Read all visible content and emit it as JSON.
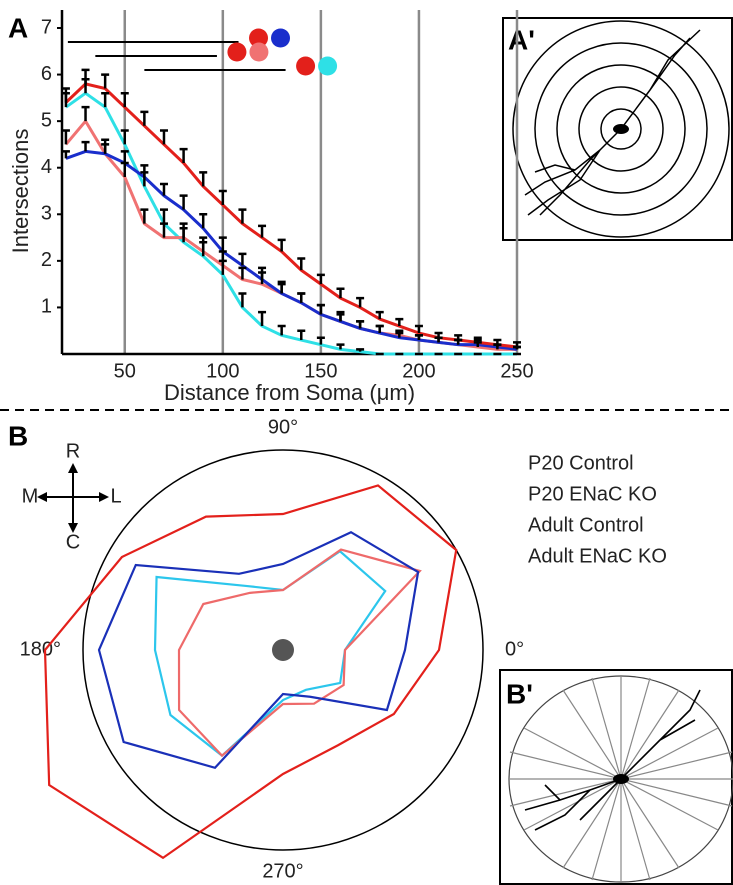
{
  "chart_data": [
    {
      "type": "line",
      "panel_label": "A",
      "inset_label": "A'",
      "x_label": "Distance from Soma (μm)",
      "y_label": "Intersections",
      "x": [
        20,
        30,
        40,
        50,
        60,
        70,
        80,
        90,
        100,
        110,
        120,
        130,
        140,
        150,
        160,
        170,
        180,
        190,
        200,
        210,
        220,
        230,
        240,
        250
      ],
      "series": [
        {
          "color": "#2ee0e6",
          "values": [
            5.3,
            5.6,
            5.3,
            4.5,
            3.6,
            2.8,
            2.4,
            2.1,
            1.7,
            1.0,
            0.6,
            0.4,
            0.3,
            0.2,
            0.1,
            0.05,
            0,
            0,
            0,
            0,
            0,
            0,
            0,
            0
          ],
          "errors": [
            0.3,
            0.3,
            0.3,
            0.3,
            0.3,
            0.3,
            0.3,
            0.3,
            0.3,
            0.3,
            0.3,
            0.2,
            0.2,
            0.15,
            0.1,
            0.05,
            0,
            0,
            0,
            0,
            0,
            0,
            0,
            0
          ]
        },
        {
          "color": "#f07272",
          "values": [
            4.5,
            5.0,
            4.3,
            3.8,
            2.8,
            2.5,
            2.5,
            2.2,
            1.9,
            1.6,
            1.5,
            1.3,
            1.1,
            0.85,
            0.7,
            0.55,
            0.45,
            0.4,
            0.3,
            0.25,
            0.2,
            0.15,
            0.1,
            0.1
          ],
          "errors": [
            0.3,
            0.3,
            0.3,
            0.3,
            0.3,
            0.3,
            0.3,
            0.3,
            0.3,
            0.25,
            0.25,
            0.25,
            0.2,
            0.2,
            0.2,
            0.15,
            0.15,
            0.1,
            0.1,
            0.1,
            0.1,
            0.1,
            0.1,
            0.05
          ]
        },
        {
          "color": "#1a2ecc",
          "values": [
            4.2,
            4.35,
            4.3,
            4.1,
            3.8,
            3.4,
            3.1,
            2.7,
            2.2,
            1.9,
            1.6,
            1.3,
            1.1,
            0.85,
            0.7,
            0.55,
            0.45,
            0.35,
            0.3,
            0.25,
            0.2,
            0.2,
            0.15,
            0.1
          ],
          "errors": [
            0.15,
            0.2,
            0.2,
            0.25,
            0.25,
            0.25,
            0.3,
            0.3,
            0.3,
            0.25,
            0.25,
            0.2,
            0.2,
            0.2,
            0.15,
            0.15,
            0.15,
            0.1,
            0.1,
            0.1,
            0.1,
            0.1,
            0.05,
            0.05
          ]
        },
        {
          "color": "#e3201b",
          "values": [
            5.4,
            5.8,
            5.7,
            5.3,
            4.9,
            4.5,
            4.1,
            3.6,
            3.2,
            2.8,
            2.5,
            2.2,
            1.8,
            1.5,
            1.2,
            1.0,
            0.75,
            0.6,
            0.45,
            0.35,
            0.3,
            0.25,
            0.2,
            0.15
          ],
          "errors": [
            0.3,
            0.3,
            0.3,
            0.3,
            0.3,
            0.3,
            0.3,
            0.3,
            0.3,
            0.3,
            0.25,
            0.25,
            0.25,
            0.2,
            0.2,
            0.2,
            0.15,
            0.15,
            0.15,
            0.1,
            0.1,
            0.1,
            0.1,
            0.1
          ]
        }
      ],
      "comparisons": [
        {
          "range": [
            21,
            108
          ],
          "colors": [
            "#e3201b",
            "#1a2ecc"
          ]
        },
        {
          "range": [
            35,
            97
          ],
          "colors": [
            "#e3201b",
            "#f07272"
          ]
        },
        {
          "range": [
            60,
            132
          ],
          "colors": [
            "#e3201b",
            "#2ee0e6"
          ]
        }
      ],
      "xlim": [
        18,
        250
      ],
      "ylim": [
        0,
        7
      ],
      "xticks": [
        50,
        100,
        150,
        200,
        250
      ],
      "yticks": [
        1,
        2,
        3,
        4,
        5,
        6,
        7
      ],
      "xgrid": true
    },
    {
      "type": "polar",
      "panel_label": "B",
      "inset_label": "B'",
      "compass": {
        "up": "R",
        "down": "C",
        "left": "M",
        "right": "L"
      },
      "angles": [
        0,
        30,
        60,
        90,
        120,
        150,
        180,
        210,
        240,
        270,
        300,
        330
      ],
      "series": [
        {
          "name": "P20 Control",
          "color": "#2cc6ec",
          "values": [
            0.31,
            0.59,
            0.57,
            0.3,
            0.37,
            0.73,
            0.64,
            0.65,
            0.61,
            0.25,
            0.23,
            0.33
          ]
        },
        {
          "name": "P20 ENaC KO",
          "color": "#ee6a6a",
          "values": [
            0.31,
            0.79,
            0.58,
            0.3,
            0.33,
            0.46,
            0.52,
            0.6,
            0.61,
            0.27,
            0.31,
            0.35
          ]
        },
        {
          "name": "Adult Control",
          "color": "#1a30b8",
          "values": [
            0.61,
            0.78,
            0.68,
            0.43,
            0.44,
            0.85,
            0.92,
            0.92,
            0.68,
            0.22,
            0.27,
            0.6
          ]
        },
        {
          "name": "Adult ENaC KO",
          "color": "#e3201b",
          "values": [
            0.78,
            1.0,
            0.95,
            0.68,
            0.77,
            0.93,
            1.19,
            1.35,
            1.2,
            0.62,
            0.55,
            0.64
          ]
        }
      ],
      "rlim": [
        0,
        1
      ],
      "angle_ticks": [
        {
          "value": 0,
          "label": "0°"
        },
        {
          "value": 90,
          "label": "90°"
        },
        {
          "value": 180,
          "label": "180°"
        },
        {
          "value": 270,
          "label": "270°"
        }
      ]
    }
  ]
}
